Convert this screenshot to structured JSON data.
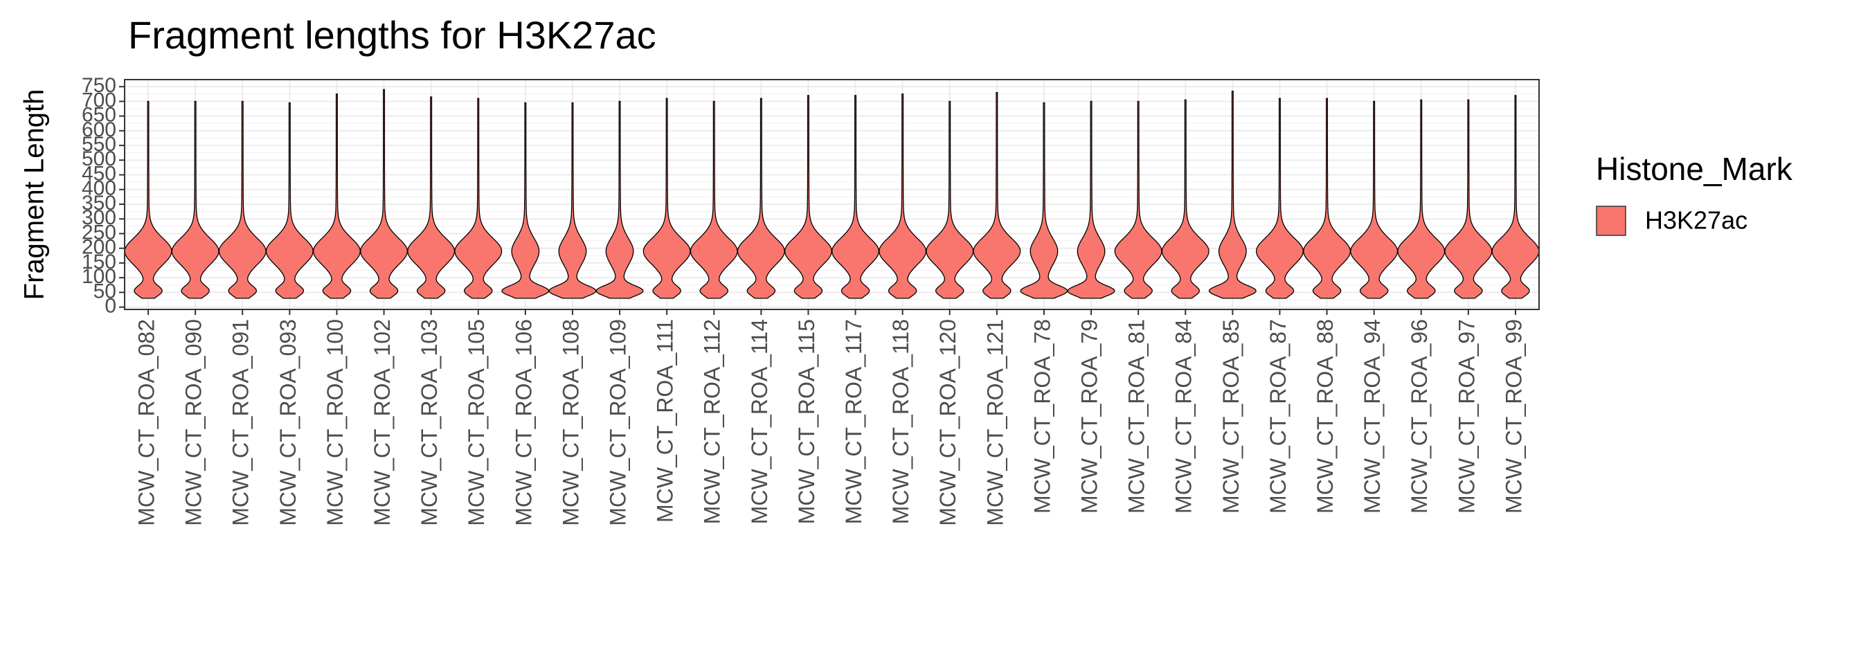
{
  "chart_data": {
    "type": "violin",
    "title": "Fragment lengths for H3K27ac",
    "y_label": "Fragment Length",
    "legend_title": "Histone_Mark",
    "series_name": "H3K27ac",
    "color": "#F8766D",
    "categories": [
      "MCW_CT_ROA_082",
      "MCW_CT_ROA_090",
      "MCW_CT_ROA_091",
      "MCW_CT_ROA_093",
      "MCW_CT_ROA_100",
      "MCW_CT_ROA_102",
      "MCW_CT_ROA_103",
      "MCW_CT_ROA_105",
      "MCW_CT_ROA_106",
      "MCW_CT_ROA_108",
      "MCW_CT_ROA_109",
      "MCW_CT_ROA_111",
      "MCW_CT_ROA_112",
      "MCW_CT_ROA_114",
      "MCW_CT_ROA_115",
      "MCW_CT_ROA_117",
      "MCW_CT_ROA_118",
      "MCW_CT_ROA_120",
      "MCW_CT_ROA_121",
      "MCW_CT_ROA_78",
      "MCW_CT_ROA_79",
      "MCW_CT_ROA_81",
      "MCW_CT_ROA_84",
      "MCW_CT_ROA_85",
      "MCW_CT_ROA_87",
      "MCW_CT_ROA_88",
      "MCW_CT_ROA_94",
      "MCW_CT_ROA_96",
      "MCW_CT_ROA_97",
      "MCW_CT_ROA_99"
    ],
    "min": [
      30,
      30,
      30,
      30,
      30,
      30,
      30,
      30,
      30,
      30,
      30,
      30,
      30,
      30,
      30,
      30,
      30,
      30,
      30,
      30,
      30,
      30,
      30,
      30,
      30,
      30,
      30,
      30,
      30,
      30
    ],
    "max": [
      700,
      700,
      700,
      695,
      725,
      740,
      715,
      710,
      695,
      695,
      700,
      710,
      700,
      710,
      720,
      720,
      725,
      700,
      730,
      695,
      700,
      700,
      705,
      735,
      710,
      710,
      700,
      705,
      705,
      720
    ],
    "modes": [
      [
        190,
        55
      ],
      [
        190,
        55
      ],
      [
        190,
        55
      ],
      [
        190,
        55
      ],
      [
        190,
        55
      ],
      [
        190,
        55
      ],
      [
        190,
        55
      ],
      [
        190,
        55
      ],
      [
        55,
        190
      ],
      [
        55,
        190
      ],
      [
        55,
        190
      ],
      [
        190,
        55
      ],
      [
        190,
        55
      ],
      [
        190,
        55
      ],
      [
        190,
        55
      ],
      [
        190,
        55
      ],
      [
        190,
        55
      ],
      [
        190,
        55
      ],
      [
        190,
        55
      ],
      [
        55,
        190
      ],
      [
        55,
        190
      ],
      [
        190,
        55
      ],
      [
        190,
        55
      ],
      [
        55,
        190
      ],
      [
        190,
        55
      ],
      [
        190,
        55
      ],
      [
        190,
        55
      ],
      [
        190,
        55
      ],
      [
        190,
        55
      ],
      [
        190,
        55
      ]
    ],
    "ylim": [
      -8,
      774
    ],
    "yticks": [
      0,
      50,
      100,
      150,
      200,
      250,
      300,
      350,
      400,
      450,
      500,
      550,
      600,
      650,
      700,
      750
    ],
    "grid": true
  }
}
